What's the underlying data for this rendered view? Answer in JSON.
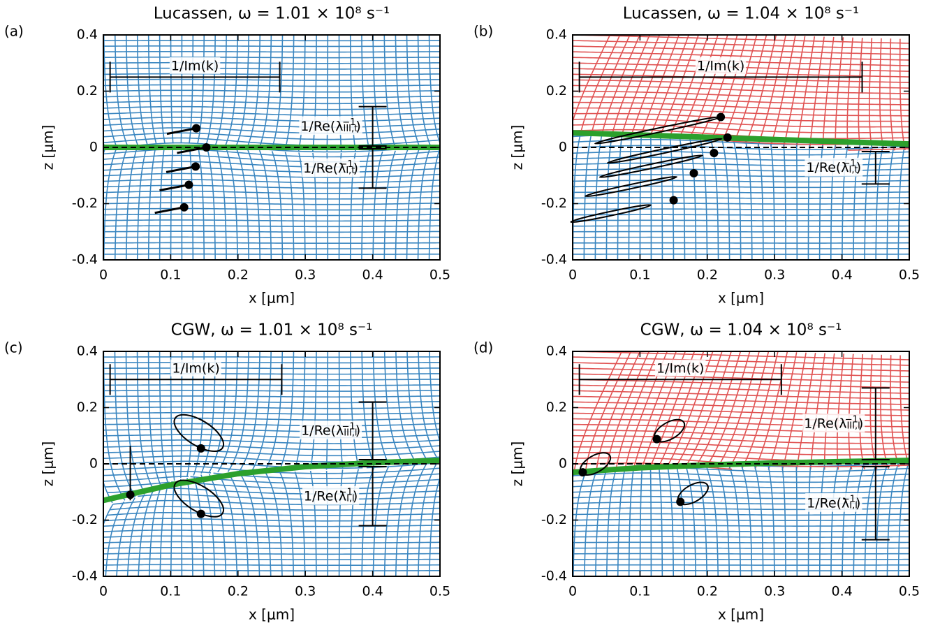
{
  "chart_data": [
    {
      "type": "field",
      "panel": "(a)",
      "title": "Lucassen, ω = 1.01 × 10⁸ s⁻¹",
      "xlabel": "x [μm]",
      "ylabel": "z [μm]",
      "xlim": [
        0,
        0.5
      ],
      "ylim": [
        -0.4,
        0.4
      ],
      "xticks": [
        0,
        0.1,
        0.2,
        0.3,
        0.4,
        0.5
      ],
      "yticks": [
        -0.4,
        -0.2,
        0,
        0.2,
        0.4
      ],
      "upper_color": "#3a86c0",
      "lower_color": "#3a86c0",
      "interface_color": "#2ca02c",
      "interface": {
        "x": [
          0,
          0.5
        ],
        "y": [
          0,
          0
        ]
      },
      "points": {
        "x": [
          0.138,
          0.153,
          0.137,
          0.127,
          0.12
        ],
        "y": [
          0.068,
          0,
          -0.068,
          -0.133,
          -0.213
        ]
      },
      "bars": [
        {
          "label": [
            "1/Im(k)"
          ],
          "orient": "h",
          "at": 0.25,
          "span": [
            0.01,
            0.262
          ]
        },
        {
          "label": [
            "1/Re(λ",
            "III,t",
            "−1",
            ")"
          ],
          "orient": "v",
          "at": 0.4,
          "span": [
            0.005,
            0.145
          ]
        },
        {
          "label": [
            "1/Re(λ",
            "I,t",
            "−1",
            ")"
          ],
          "orient": "v",
          "at": 0.4,
          "span": [
            -0.005,
            -0.145
          ]
        }
      ]
    },
    {
      "type": "field",
      "panel": "(b)",
      "title": "Lucassen, ω = 1.04 × 10⁸ s⁻¹",
      "xlabel": "x [μm]",
      "ylabel": "z [μm]",
      "xlim": [
        0,
        0.5
      ],
      "ylim": [
        -0.4,
        0.4
      ],
      "xticks": [
        0,
        0.1,
        0.2,
        0.3,
        0.4,
        0.5
      ],
      "yticks": [
        -0.4,
        -0.2,
        0,
        0.2,
        0.4
      ],
      "upper_color": "#e05252",
      "lower_color": "#3a86c0",
      "interface_color": "#2ca02c",
      "interface": {
        "x": [
          0,
          0.25,
          0.5
        ],
        "y": [
          0.052,
          0.032,
          0.012
        ]
      },
      "points": {
        "x": [
          0.22,
          0.23,
          0.21,
          0.18,
          0.15
        ],
        "y": [
          0.108,
          0.035,
          -0.02,
          -0.092,
          -0.188
        ]
      },
      "bars": [
        {
          "label": [
            "1/Im(k)"
          ],
          "orient": "h",
          "at": 0.25,
          "span": [
            0.01,
            0.43
          ]
        },
        {
          "label": [
            "1/Re(λ",
            "I,t",
            "−1",
            ")"
          ],
          "orient": "v",
          "at": 0.45,
          "span": [
            -0.015,
            -0.13
          ]
        }
      ]
    },
    {
      "type": "field",
      "panel": "(c)",
      "title": "CGW, ω = 1.01 × 10⁸ s⁻¹",
      "xlabel": "x [μm]",
      "ylabel": "z [μm]",
      "xlim": [
        0,
        0.5
      ],
      "ylim": [
        -0.4,
        0.4
      ],
      "xticks": [
        0,
        0.1,
        0.2,
        0.3,
        0.4,
        0.5
      ],
      "yticks": [
        -0.4,
        -0.2,
        0,
        0.2,
        0.4
      ],
      "upper_color": "#3a86c0",
      "lower_color": "#3a86c0",
      "interface_color": "#2ca02c",
      "interface": {
        "x": [
          0,
          0.1,
          0.2,
          0.3,
          0.4,
          0.5
        ],
        "y": [
          -0.13,
          -0.075,
          -0.035,
          -0.01,
          0.004,
          0.012
        ]
      },
      "points": {
        "x": [
          0.145,
          0.04,
          0.145
        ],
        "y": [
          0.055,
          -0.11,
          -0.178
        ]
      },
      "bars": [
        {
          "label": [
            "1/Im(k)"
          ],
          "orient": "h",
          "at": 0.3,
          "span": [
            0.01,
            0.265
          ]
        },
        {
          "label": [
            "1/Re(λ",
            "III,l",
            "−1",
            ")"
          ],
          "orient": "v",
          "at": 0.4,
          "span": [
            0.015,
            0.22
          ]
        },
        {
          "label": [
            "1/Re(λ",
            "I,l",
            "−1",
            ")"
          ],
          "orient": "v",
          "at": 0.4,
          "span": [
            -0.01,
            -0.22
          ]
        }
      ]
    },
    {
      "type": "field",
      "panel": "(d)",
      "title": "CGW, ω = 1.04 × 10⁸ s⁻¹",
      "xlabel": "x [μm]",
      "ylabel": "z [μm]",
      "xlim": [
        0,
        0.5
      ],
      "ylim": [
        -0.4,
        0.4
      ],
      "xticks": [
        0,
        0.1,
        0.2,
        0.3,
        0.4,
        0.5
      ],
      "yticks": [
        -0.4,
        -0.2,
        0,
        0.2,
        0.4
      ],
      "upper_color": "#e05252",
      "lower_color": "#3a86c0",
      "interface_color": "#2ca02c",
      "interface": {
        "x": [
          0,
          0.1,
          0.2,
          0.3,
          0.4,
          0.5
        ],
        "y": [
          -0.03,
          -0.014,
          -0.004,
          0.003,
          0.008,
          0.012
        ]
      },
      "points": {
        "x": [
          0.125,
          0.015,
          0.16
        ],
        "y": [
          0.088,
          -0.03,
          -0.135
        ]
      },
      "bars": [
        {
          "label": [
            "1/Im(k)"
          ],
          "orient": "h",
          "at": 0.3,
          "span": [
            0.01,
            0.31
          ]
        },
        {
          "label": [
            "1/Re(λ",
            "III,l",
            "−1",
            ")"
          ],
          "orient": "v",
          "at": 0.45,
          "span": [
            0.015,
            0.27
          ]
        },
        {
          "label": [
            "1/Re(λ",
            "I,l",
            "−1",
            ")"
          ],
          "orient": "v",
          "at": 0.45,
          "span": [
            -0.01,
            -0.27
          ]
        }
      ]
    }
  ]
}
